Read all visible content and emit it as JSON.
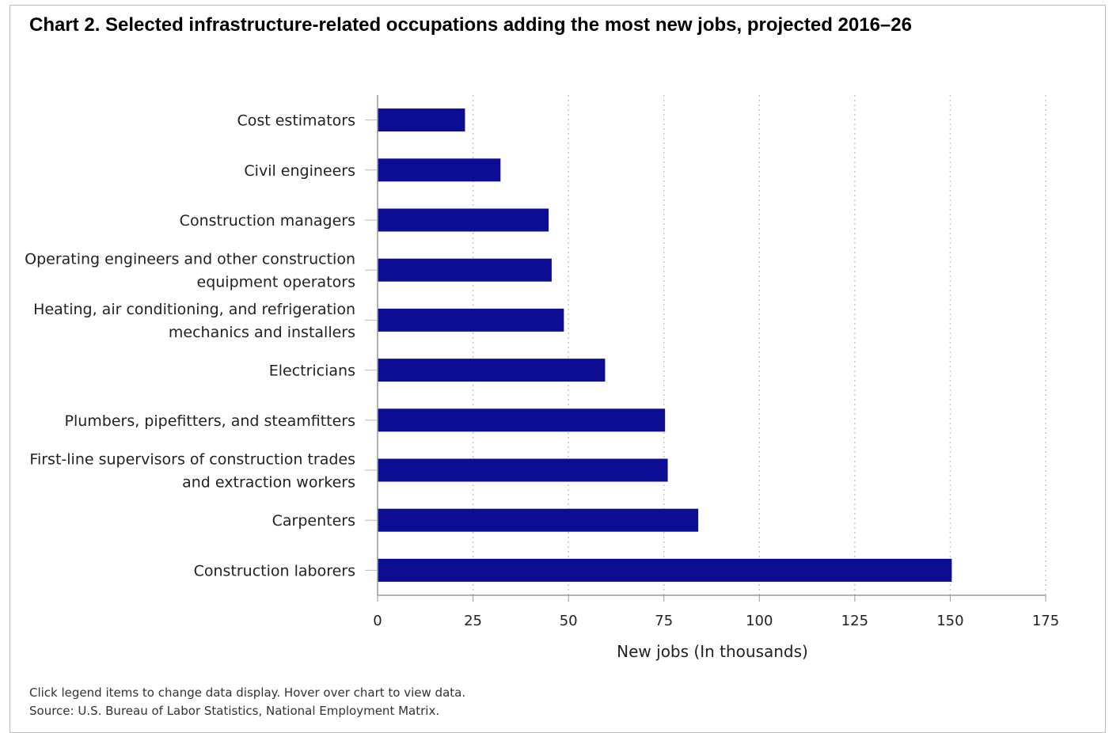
{
  "chart_title": "Chart 2. Selected infrastructure-related occupations adding the most new jobs, projected 2016–26",
  "footnotes": {
    "instructions": "Click legend items to change data display. Hover over chart to view data.",
    "source": "Source: U.S. Bureau of Labor Statistics, National Employment Matrix."
  },
  "chart_data": {
    "type": "bar",
    "orientation": "horizontal",
    "title": "Chart 2. Selected infrastructure-related occupations adding the most new jobs, projected 2016–26",
    "xlabel": "New jobs (In thousands)",
    "ylabel": "",
    "xlim": [
      0,
      175
    ],
    "xticks": [
      "0",
      "25",
      "50",
      "75",
      "100",
      "125",
      "150",
      "175"
    ],
    "grid": "vertical-dotted",
    "bar_color": "#0d0d94",
    "categories": [
      [
        "Cost estimators"
      ],
      [
        "Civil engineers"
      ],
      [
        "Construction managers"
      ],
      [
        "Operating engineers and other construction",
        "equipment operators"
      ],
      [
        "Heating, air conditioning, and refrigeration",
        "mechanics and installers"
      ],
      [
        "Electricians"
      ],
      [
        "Plumbers, pipefitters, and steamfitters"
      ],
      [
        "First-line supervisors of construction trades",
        "and extraction workers"
      ],
      [
        "Carpenters"
      ],
      [
        "Construction laborers"
      ]
    ],
    "values": [
      22.9,
      32.2,
      44.8,
      45.6,
      48.8,
      59.6,
      75.3,
      76.0,
      84.0,
      150.4
    ]
  }
}
